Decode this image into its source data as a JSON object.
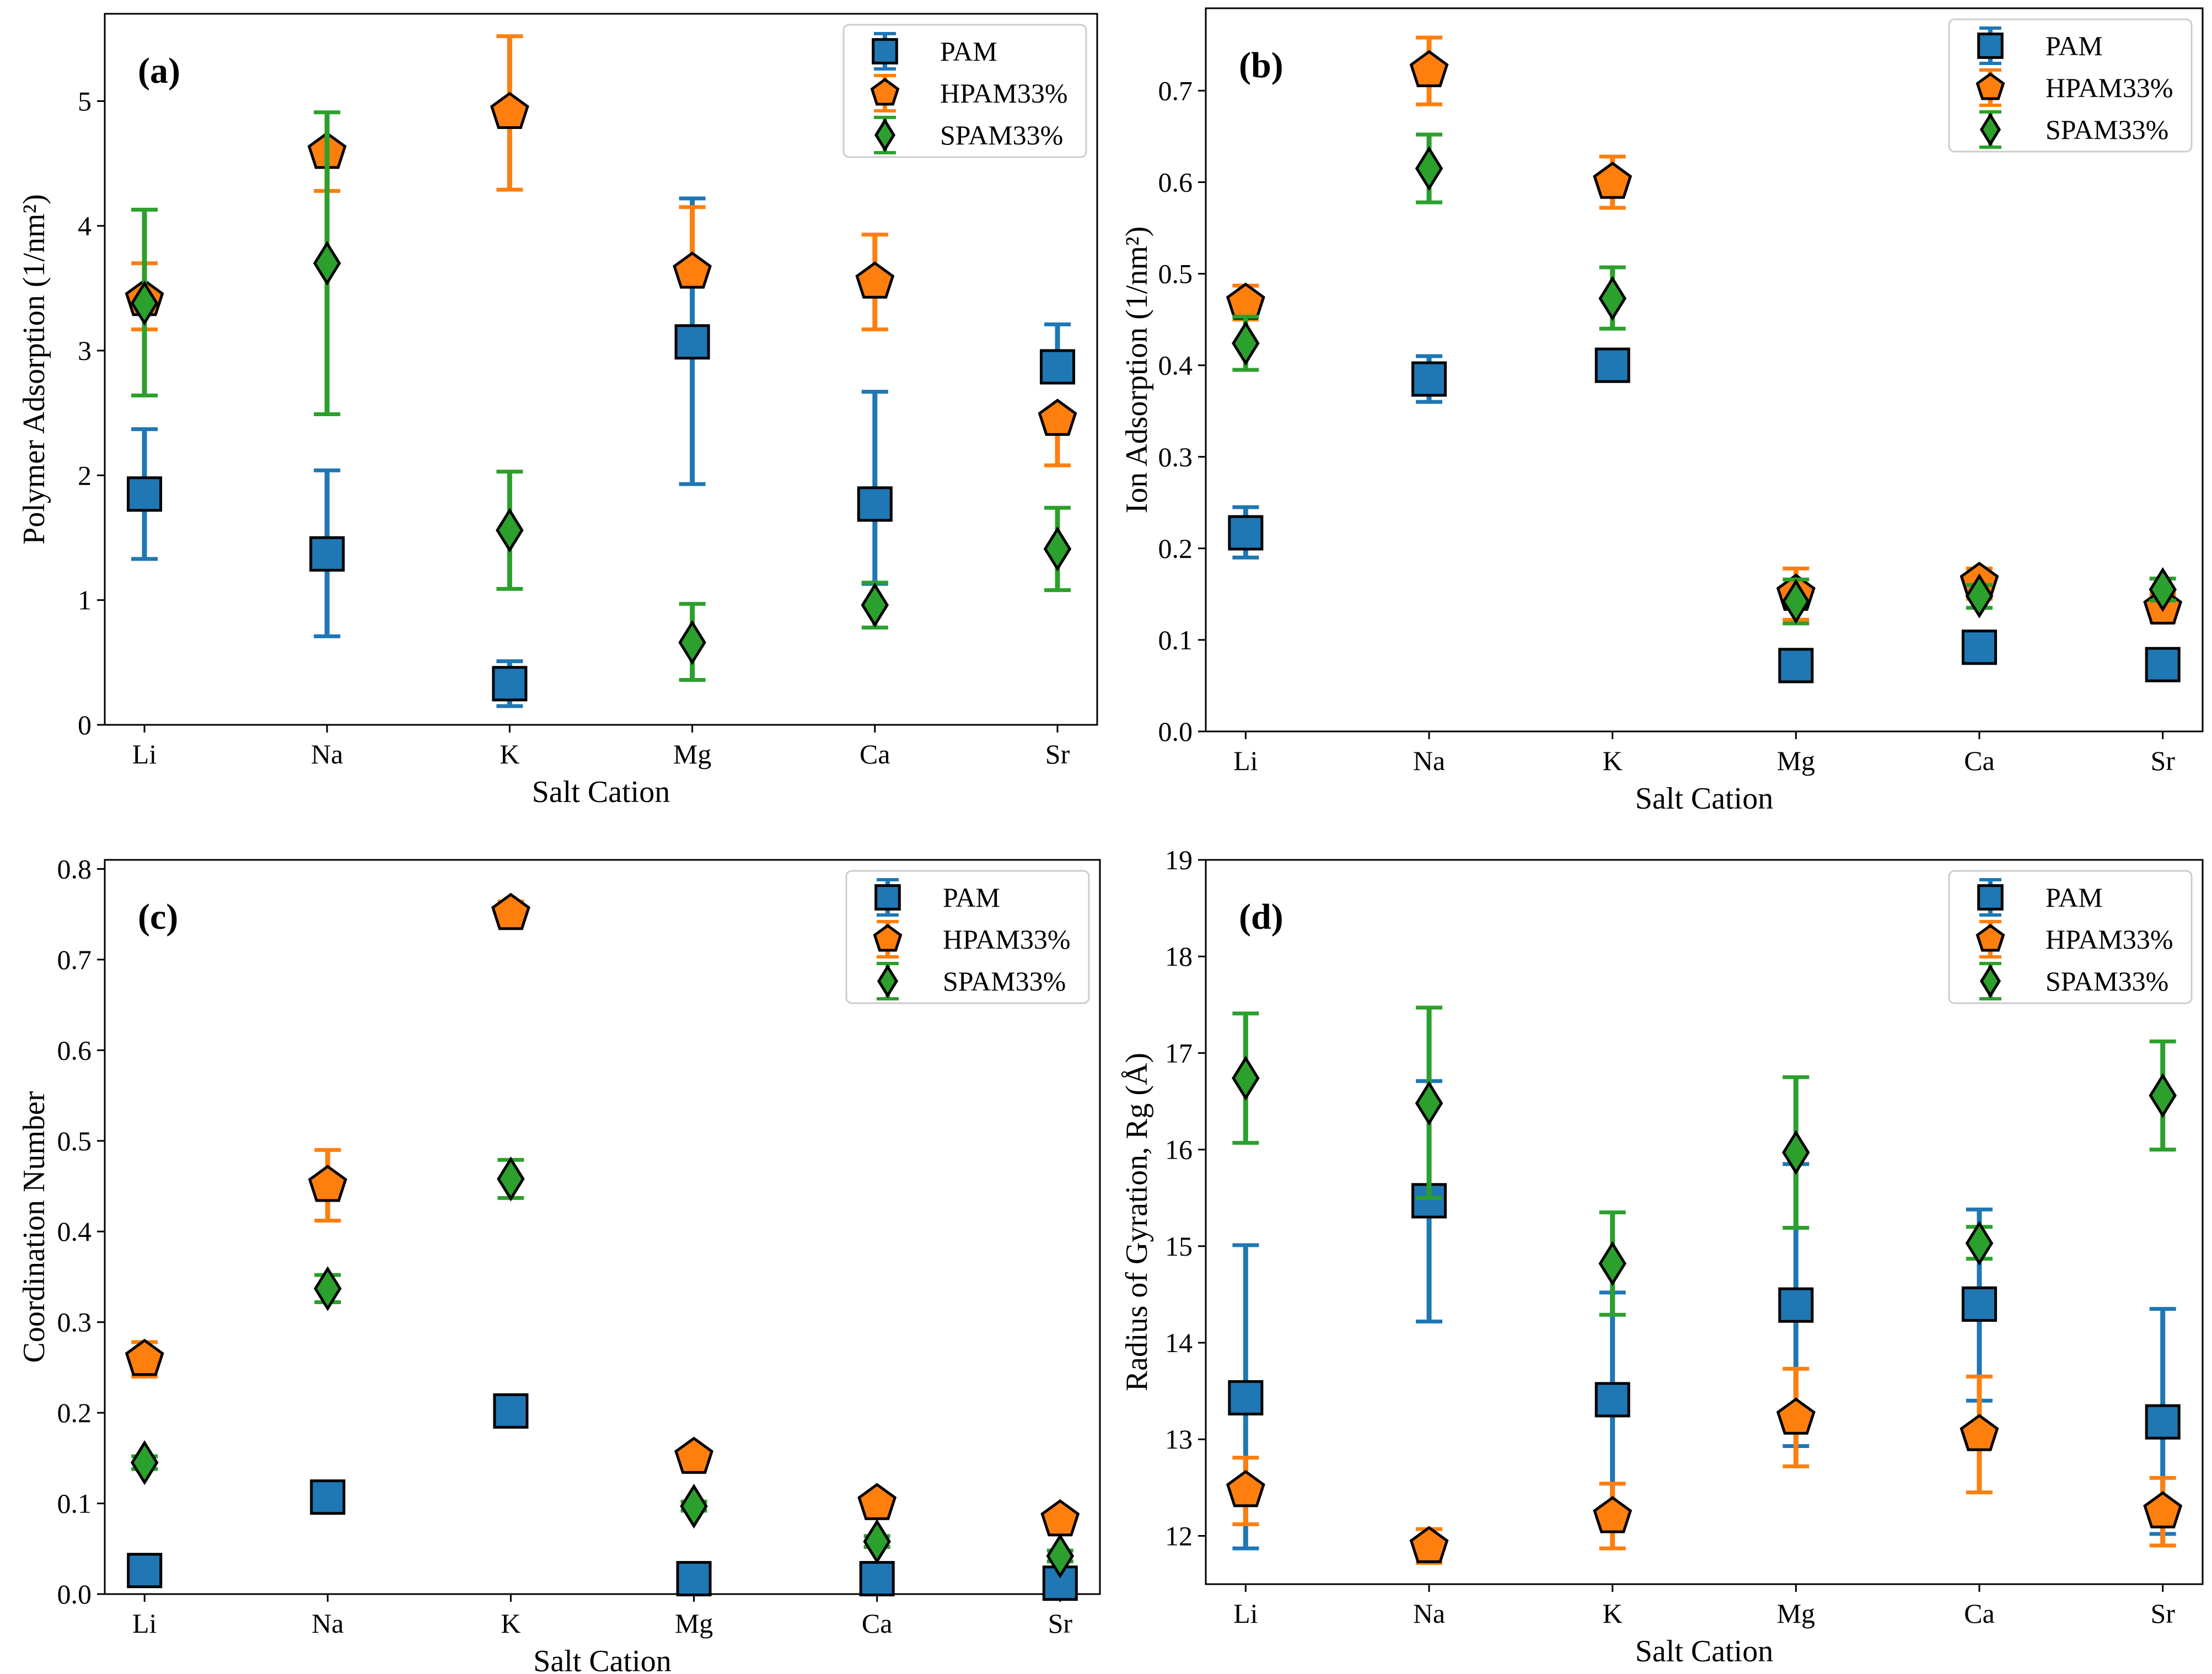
{
  "series_styles": {
    "PAM": {
      "color": "#1f77b4",
      "marker": "square"
    },
    "HPAM33%": {
      "color": "#ff7f0e",
      "marker": "pentagon"
    },
    "SPAM33%": {
      "color": "#2ca02c",
      "marker": "diamond"
    }
  },
  "chart_data": [
    {
      "type": "scatter",
      "panel": "(a)",
      "xlabel": "Salt Cation",
      "ylabel": "Polymer Adsorption (1/nm²)",
      "categories": [
        "Li",
        "Na",
        "K",
        "Mg",
        "Ca",
        "Sr"
      ],
      "ylim": [
        0,
        5.7
      ],
      "yticks": [
        0,
        1,
        2,
        3,
        4,
        5
      ],
      "ytick_labels": [
        "0",
        "1",
        "2",
        "3",
        "4",
        "5"
      ],
      "legend": [
        "PAM",
        "HPAM33%",
        "SPAM33%"
      ],
      "legend_position": "top-right",
      "series": [
        {
          "name": "PAM",
          "values": [
            1.85,
            1.37,
            0.33,
            3.07,
            1.77,
            2.87
          ],
          "err_low": [
            1.33,
            0.71,
            0.15,
            1.93,
            1.13,
            2.87
          ],
          "err_high": [
            2.37,
            2.04,
            0.51,
            4.22,
            2.67,
            3.21
          ]
        },
        {
          "name": "HPAM33%",
          "values": [
            3.41,
            4.59,
            4.91,
            3.63,
            3.55,
            2.45
          ],
          "err_low": [
            3.17,
            4.28,
            4.29,
            3.63,
            3.17,
            2.08
          ],
          "err_high": [
            3.7,
            4.59,
            5.52,
            4.15,
            3.93,
            2.45
          ]
        },
        {
          "name": "SPAM33%",
          "values": [
            3.38,
            3.7,
            1.56,
            0.66,
            0.96,
            1.41
          ],
          "err_low": [
            2.64,
            2.49,
            1.09,
            0.36,
            0.78,
            1.08
          ],
          "err_high": [
            4.13,
            4.91,
            2.03,
            0.97,
            1.14,
            1.74
          ]
        }
      ]
    },
    {
      "type": "scatter",
      "panel": "(b)",
      "xlabel": "Salt Cation",
      "ylabel": "Ion Adsorption (1/nm²)",
      "categories": [
        "Li",
        "Na",
        "K",
        "Mg",
        "Ca",
        "Sr"
      ],
      "ylim": [
        0,
        0.79
      ],
      "yticks": [
        0,
        0.1,
        0.2,
        0.3,
        0.4,
        0.5,
        0.6,
        0.7
      ],
      "ytick_labels": [
        "0.0",
        "0.1",
        "0.2",
        "0.3",
        "0.4",
        "0.5",
        "0.6",
        "0.7"
      ],
      "legend": [
        "PAM",
        "HPAM33%",
        "SPAM33%"
      ],
      "legend_position": "top-right",
      "series": [
        {
          "name": "PAM",
          "values": [
            0.217,
            0.385,
            0.4,
            0.072,
            0.092,
            0.073
          ],
          "err_low": [
            0.19,
            0.36,
            0.4,
            0.072,
            0.092,
            0.073
          ],
          "err_high": [
            0.245,
            0.41,
            0.4,
            0.072,
            0.092,
            0.073
          ]
        },
        {
          "name": "HPAM33%",
          "values": [
            0.468,
            0.722,
            0.6,
            0.15,
            0.163,
            0.135
          ],
          "err_low": [
            0.45,
            0.685,
            0.572,
            0.122,
            0.145,
            0.12
          ],
          "err_high": [
            0.487,
            0.758,
            0.628,
            0.178,
            0.178,
            0.15
          ]
        },
        {
          "name": "SPAM33%",
          "values": [
            0.424,
            0.615,
            0.473,
            0.142,
            0.148,
            0.155
          ],
          "err_low": [
            0.395,
            0.578,
            0.44,
            0.118,
            0.135,
            0.143
          ],
          "err_high": [
            0.453,
            0.652,
            0.507,
            0.166,
            0.16,
            0.167
          ]
        }
      ]
    },
    {
      "type": "scatter",
      "panel": "(c)",
      "xlabel": "Salt Cation",
      "ylabel": "Coordination Number",
      "categories": [
        "Li",
        "Na",
        "K",
        "Mg",
        "Ca",
        "Sr"
      ],
      "ylim": [
        0,
        0.81
      ],
      "yticks": [
        0,
        0.1,
        0.2,
        0.3,
        0.4,
        0.5,
        0.6,
        0.7,
        0.8
      ],
      "ytick_labels": [
        "0.0",
        "0.1",
        "0.2",
        "0.3",
        "0.4",
        "0.5",
        "0.6",
        "0.7",
        "0.8"
      ],
      "legend": [
        "PAM",
        "HPAM33%",
        "SPAM33%"
      ],
      "legend_position": "top-right",
      "series": [
        {
          "name": "PAM",
          "values": [
            0.026,
            0.107,
            0.202,
            0.017,
            0.017,
            0.012
          ],
          "err_low": [
            0.026,
            0.107,
            0.202,
            0.017,
            0.017,
            0.012
          ],
          "err_high": [
            0.026,
            0.107,
            0.202,
            0.017,
            0.017,
            0.012
          ]
        },
        {
          "name": "HPAM33%",
          "values": [
            0.259,
            0.451,
            0.751,
            0.151,
            0.1,
            0.082
          ],
          "err_low": [
            0.24,
            0.412,
            0.738,
            0.151,
            0.1,
            0.082
          ],
          "err_high": [
            0.278,
            0.49,
            0.764,
            0.151,
            0.1,
            0.082
          ]
        },
        {
          "name": "SPAM33%",
          "values": [
            0.145,
            0.337,
            0.458,
            0.097,
            0.058,
            0.042
          ],
          "err_low": [
            0.138,
            0.322,
            0.437,
            0.092,
            0.052,
            0.036
          ],
          "err_high": [
            0.152,
            0.352,
            0.479,
            0.102,
            0.064,
            0.048
          ]
        }
      ]
    },
    {
      "type": "scatter",
      "panel": "(d)",
      "xlabel": "Salt Cation",
      "ylabel": "Radius of Gyration, Rg (Å)",
      "categories": [
        "Li",
        "Na",
        "K",
        "Mg",
        "Ca",
        "Sr"
      ],
      "ylim": [
        11.5,
        19
      ],
      "yticks": [
        12,
        13,
        14,
        15,
        16,
        17,
        18,
        19
      ],
      "ytick_labels": [
        "12",
        "13",
        "14",
        "15",
        "16",
        "17",
        "18",
        "19"
      ],
      "legend": [
        "PAM",
        "HPAM33%",
        "SPAM33%"
      ],
      "legend_position": "top-right",
      "series": [
        {
          "name": "PAM",
          "values": [
            13.43,
            15.47,
            13.41,
            14.39,
            14.4,
            13.18
          ],
          "err_low": [
            11.87,
            14.22,
            12.3,
            12.93,
            13.4,
            12.02
          ],
          "err_high": [
            15.01,
            16.71,
            14.52,
            15.85,
            15.38,
            14.35
          ]
        },
        {
          "name": "HPAM33%",
          "values": [
            12.47,
            11.89,
            12.2,
            13.22,
            13.05,
            12.25
          ],
          "err_low": [
            12.12,
            11.72,
            11.87,
            12.72,
            12.45,
            11.9
          ],
          "err_high": [
            12.81,
            12.07,
            12.54,
            13.73,
            13.65,
            12.6
          ]
        },
        {
          "name": "SPAM33%",
          "values": [
            16.74,
            16.48,
            14.82,
            15.97,
            15.03,
            16.56
          ],
          "err_low": [
            16.07,
            15.5,
            14.29,
            15.19,
            14.87,
            16.0
          ],
          "err_high": [
            17.41,
            17.47,
            15.35,
            16.75,
            15.2,
            17.12
          ]
        }
      ]
    }
  ]
}
